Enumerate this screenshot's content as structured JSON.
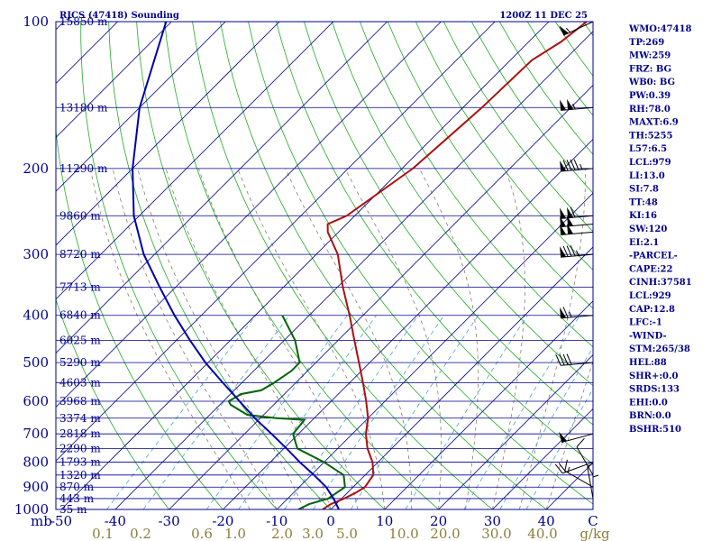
{
  "header": {
    "station": "RJCS (47418) Sounding",
    "valid_time": "1200Z 11 DEC 25"
  },
  "indices": [
    "WMO:47418",
    "TP:269",
    "MW:259",
    "FRZ: BG",
    "WB0: BG",
    "PW:0.39",
    "RH:78.0",
    "MAXT:6.9",
    "TH:5255",
    "L57:6.5",
    "LCL:979",
    "LI:13.0",
    "SI:7.8",
    "TT:48",
    "KI:16",
    "SW:120",
    "EI:2.1",
    "-PARCEL-",
    "CAPE:22",
    "CINH:37581",
    "LCL:929",
    "CAP:12.8",
    "LFC:-1",
    "-WIND-",
    "STM:265/38",
    "HEL:88",
    "SHR+:0.0",
    "SRDS:133",
    "EHI:0.0",
    "BRN:0.0",
    "BSHR:510"
  ],
  "colors": {
    "frame": "#00008b",
    "isobar": "#00008b",
    "isotherm": "#00008b",
    "dry_adiabat": "#22aa22",
    "moist_adiabat": "#8b7d6b",
    "mixing_ratio": "#4aa3d6",
    "temperature": "#aa1111",
    "dewpoint": "#006400",
    "parcel": "#0000aa",
    "wind_barb": "#000000"
  },
  "chart_data": {
    "type": "skew-t log-p",
    "title": "RJCS (47418) Sounding",
    "ylabel": "mb",
    "xlabel": "C",
    "pressure_range": [
      1000,
      100
    ],
    "temperature_range_at_1000mb": [
      -50,
      50
    ],
    "pressure_levels": [
      100,
      200,
      300,
      400,
      500,
      600,
      700,
      800,
      900,
      1000
    ],
    "temperature_ticks": [
      -50,
      -40,
      -30,
      -20,
      -10,
      0,
      10,
      20,
      30,
      40
    ],
    "temperature_tick_labels": [
      "-50",
      "-40",
      "-30",
      "-20",
      "-10",
      "0",
      "10",
      "20",
      "30",
      "40"
    ],
    "mixing_ratio_labels": [
      "0.1",
      "0.2",
      "0.6",
      "1.0",
      "2.0",
      "3.0",
      "5.0",
      "10.0",
      "20.0",
      "30.0",
      "40.0"
    ],
    "mixing_ratio_unit": "g/kg",
    "height_levels": [
      {
        "p": 100,
        "h": "15850 m"
      },
      {
        "p": 150,
        "h": "13180 m"
      },
      {
        "p": 200,
        "h": "11290 m"
      },
      {
        "p": 250,
        "h": "9860 m"
      },
      {
        "p": 300,
        "h": "8720 m"
      },
      {
        "p": 350,
        "h": "7713 m"
      },
      {
        "p": 400,
        "h": "6840 m"
      },
      {
        "p": 450,
        "h": "6025 m"
      },
      {
        "p": 500,
        "h": "5290 m"
      },
      {
        "p": 550,
        "h": "4603 m"
      },
      {
        "p": 600,
        "h": "3968 m"
      },
      {
        "p": 650,
        "h": "3374 m"
      },
      {
        "p": 700,
        "h": "2818 m"
      },
      {
        "p": 750,
        "h": "2290 m"
      },
      {
        "p": 800,
        "h": "1793 m"
      },
      {
        "p": 850,
        "h": "1320 m"
      },
      {
        "p": 900,
        "h": "870 m"
      },
      {
        "p": 950,
        "h": "443 m"
      },
      {
        "p": 1000,
        "h": "35 m"
      }
    ],
    "series": [
      {
        "name": "temperature",
        "points": [
          [
            1000,
            -1.5
          ],
          [
            975,
            -1.0
          ],
          [
            950,
            0.5
          ],
          [
            925,
            1.5
          ],
          [
            900,
            2.2
          ],
          [
            850,
            1.5
          ],
          [
            800,
            -1.0
          ],
          [
            750,
            -4.5
          ],
          [
            700,
            -7.5
          ],
          [
            650,
            -10.0
          ],
          [
            600,
            -13.5
          ],
          [
            550,
            -17.5
          ],
          [
            500,
            -22.0
          ],
          [
            450,
            -27.0
          ],
          [
            400,
            -32.5
          ],
          [
            350,
            -39.0
          ],
          [
            300,
            -46.0
          ],
          [
            270,
            -52.0
          ],
          [
            260,
            -53.5
          ],
          [
            250,
            -51.5
          ],
          [
            200,
            -48.0
          ],
          [
            150,
            -46.5
          ],
          [
            120,
            -46.0
          ],
          [
            110,
            -44.0
          ],
          [
            100,
            -43.0
          ]
        ]
      },
      {
        "name": "dewpoint",
        "points": [
          [
            1000,
            -6.0
          ],
          [
            975,
            -5.0
          ],
          [
            950,
            -2.5
          ],
          [
            900,
            -1.5
          ],
          [
            850,
            -4.0
          ],
          [
            800,
            -10.0
          ],
          [
            750,
            -17.5
          ],
          [
            700,
            -21.0
          ],
          [
            655,
            -21.5
          ],
          [
            650,
            -27.0
          ],
          [
            640,
            -33.0
          ],
          [
            610,
            -38.0
          ],
          [
            600,
            -39.0
          ],
          [
            580,
            -38.0
          ],
          [
            570,
            -35.0
          ],
          [
            550,
            -34.0
          ],
          [
            520,
            -33.0
          ],
          [
            500,
            -33.0
          ],
          [
            450,
            -38.0
          ],
          [
            400,
            -45.0
          ]
        ]
      },
      {
        "name": "parcel",
        "points": [
          [
            1000,
            1.5
          ],
          [
            950,
            -1.5
          ],
          [
            900,
            -5.0
          ],
          [
            850,
            -9.5
          ],
          [
            800,
            -14.5
          ],
          [
            750,
            -19.5
          ],
          [
            700,
            -25.0
          ],
          [
            650,
            -31.0
          ],
          [
            600,
            -37.0
          ],
          [
            550,
            -43.5
          ],
          [
            500,
            -50.5
          ],
          [
            450,
            -57.5
          ],
          [
            400,
            -65.0
          ],
          [
            350,
            -73.0
          ],
          [
            300,
            -82.0
          ],
          [
            250,
            -91.0
          ],
          [
            200,
            -100.0
          ],
          [
            150,
            -110.0
          ],
          [
            100,
            -121.0
          ]
        ]
      }
    ],
    "wind_barbs": [
      {
        "p": 100,
        "dir": 245,
        "spd": 55
      },
      {
        "p": 150,
        "dir": 265,
        "spd": 105
      },
      {
        "p": 200,
        "dir": 265,
        "spd": 95
      },
      {
        "p": 250,
        "dir": 265,
        "spd": 110
      },
      {
        "p": 260,
        "dir": 265,
        "spd": 100
      },
      {
        "p": 270,
        "dir": 265,
        "spd": 100
      },
      {
        "p": 300,
        "dir": 265,
        "spd": 85
      },
      {
        "p": 400,
        "dir": 265,
        "spd": 65
      },
      {
        "p": 500,
        "dir": 265,
        "spd": 40
      },
      {
        "p": 700,
        "dir": 255,
        "spd": 50
      },
      {
        "p": 800,
        "dir": 250,
        "spd": 20
      },
      {
        "p": 850,
        "dir": 330,
        "spd": 10
      },
      {
        "p": 900,
        "dir": 300,
        "spd": 15
      },
      {
        "p": 950,
        "dir": 350,
        "spd": 5
      },
      {
        "p": 1000,
        "dir": 0,
        "spd": 3
      }
    ]
  }
}
